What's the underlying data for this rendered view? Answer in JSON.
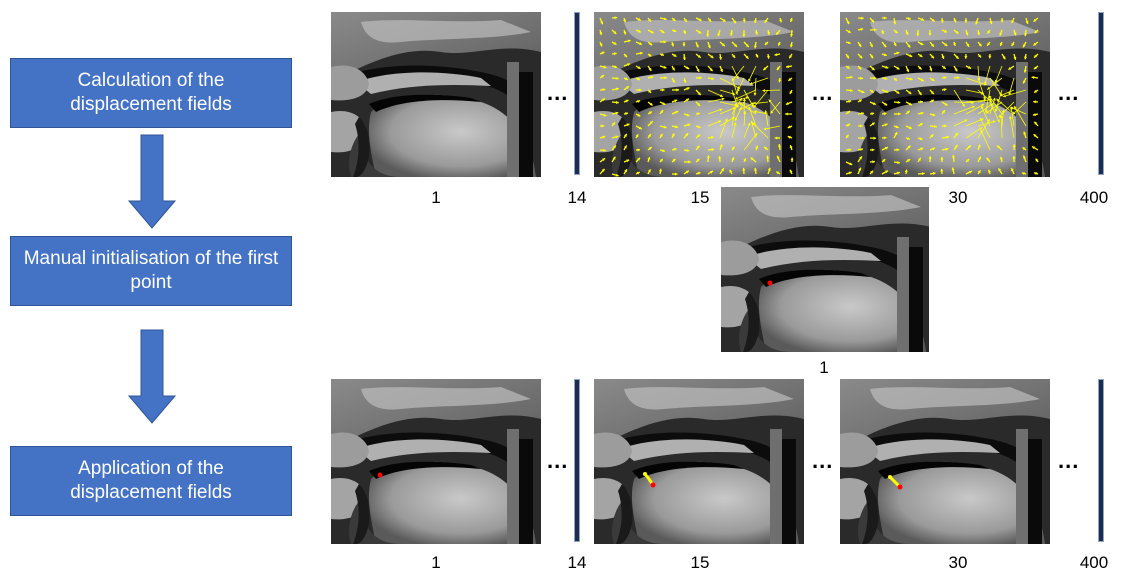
{
  "steps": [
    {
      "label": "Calculation of the displacement fields"
    },
    {
      "label": "Manual initialisation of the first point"
    },
    {
      "label": "Application of the displacement fields"
    }
  ],
  "top_row": {
    "frames": [
      "1",
      "14",
      "15",
      "30",
      "400"
    ],
    "ellipsis": "..."
  },
  "middle": {
    "frame": "1"
  },
  "bottom_row": {
    "frames": [
      "1",
      "14",
      "15",
      "30",
      "400"
    ],
    "ellipsis": "..."
  },
  "colors": {
    "box_fill": "#4472c4",
    "arrow_fill": "#4472c4",
    "vector_field": "#ffff00",
    "tracked_point": "#ff0000",
    "trajectory": "#ffff00",
    "separator": "#1f2d4d"
  }
}
